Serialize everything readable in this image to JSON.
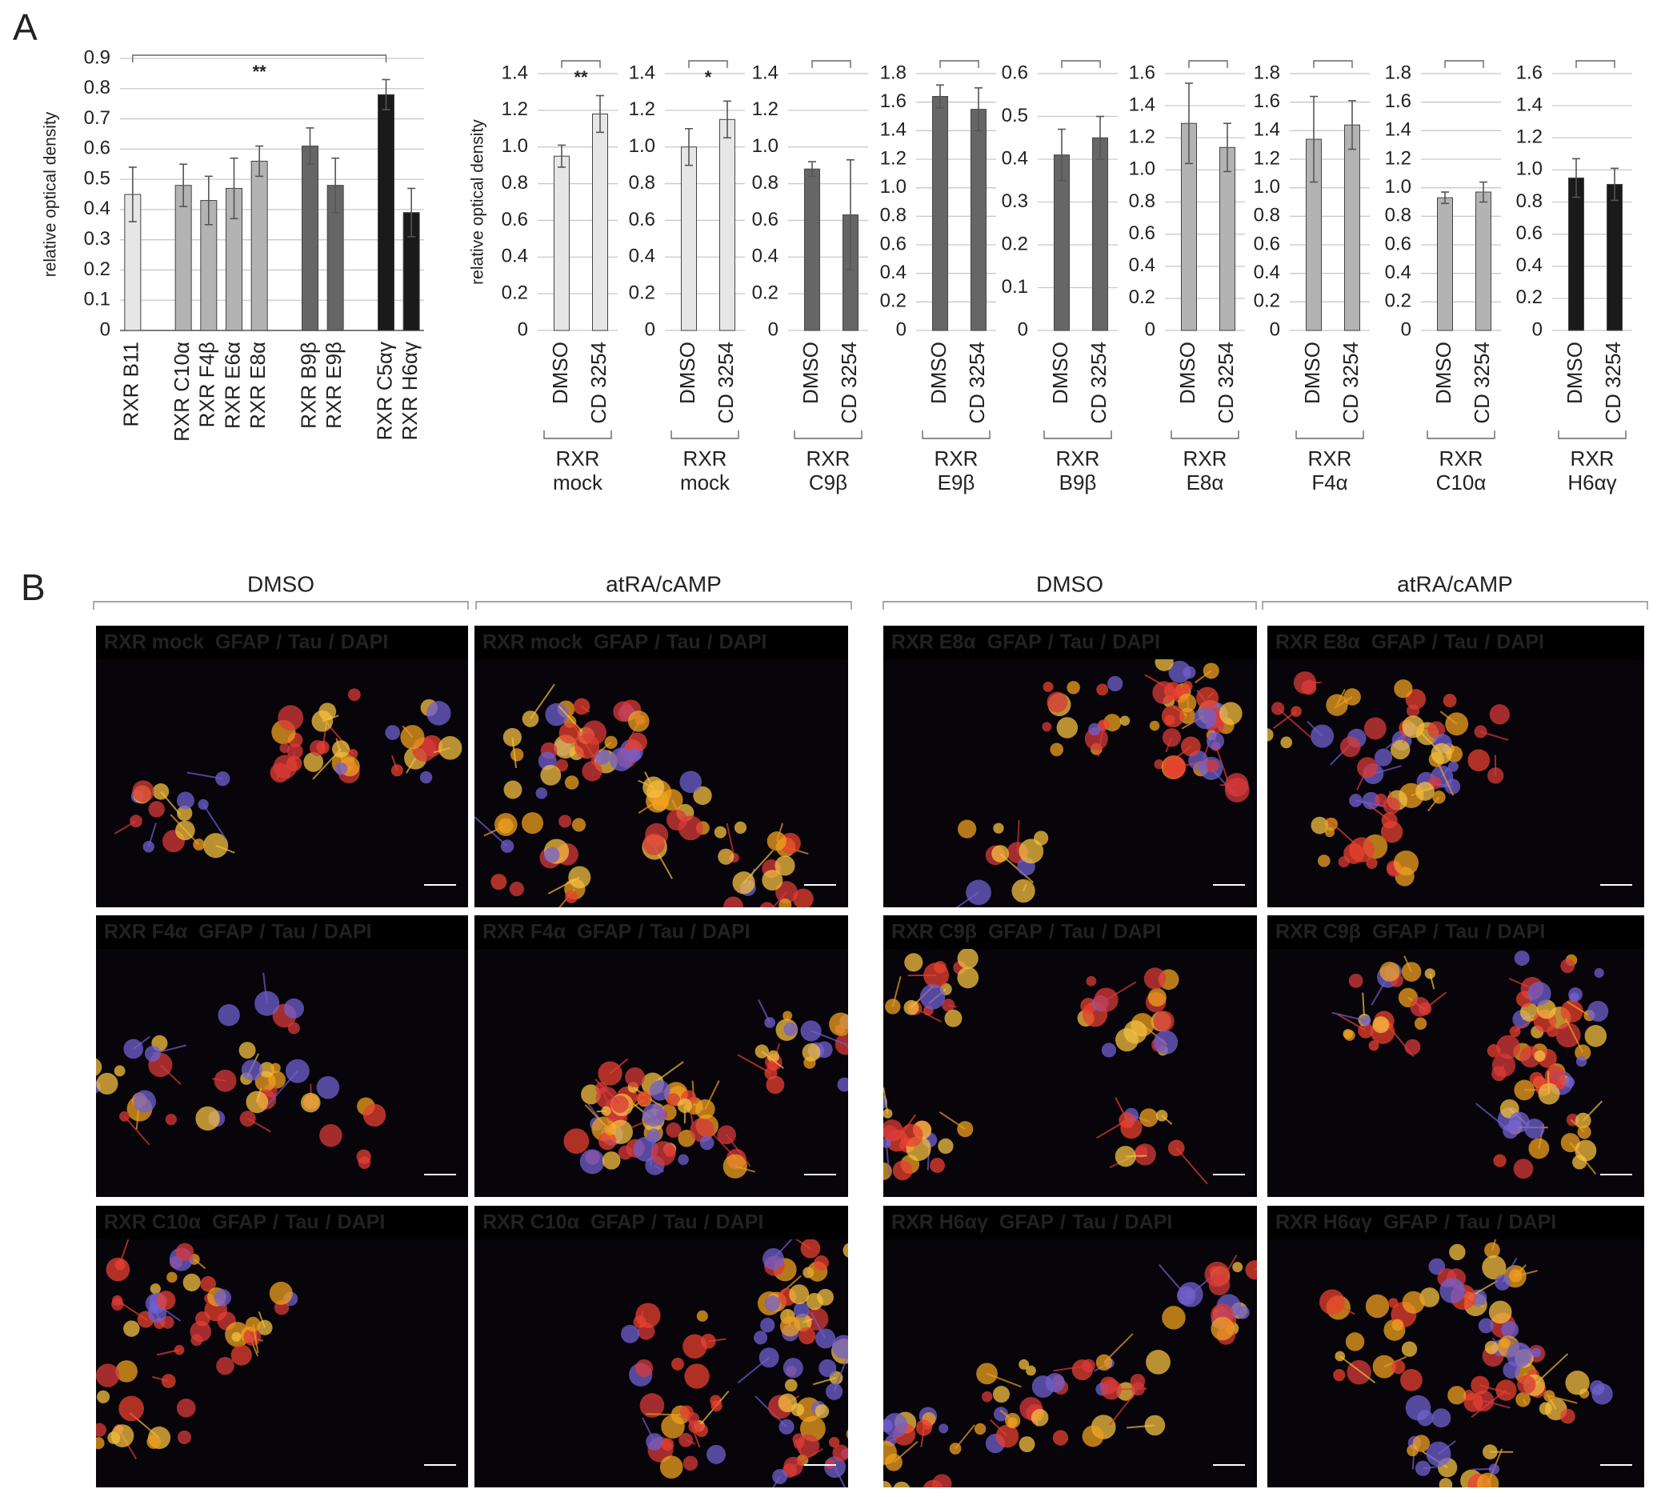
{
  "panel_labels": [
    "A",
    "B"
  ],
  "chart_data": [
    {
      "type": "bar",
      "ylabel": "relative optical density",
      "categories": [
        "RXR B11",
        null,
        "RXR C10α",
        "RXR F4β",
        "RXR E6α",
        "RXR E8α",
        null,
        "RXR B9β",
        "RXR E9β",
        null,
        "RXR C5αγ",
        "RXR H6αγ"
      ],
      "values": [
        0.45,
        null,
        0.48,
        0.43,
        0.47,
        0.56,
        null,
        0.61,
        0.48,
        null,
        0.78,
        0.39
      ],
      "errors": [
        0.09,
        null,
        0.07,
        0.08,
        0.1,
        0.05,
        null,
        0.06,
        0.09,
        null,
        0.05,
        0.08
      ],
      "colors": [
        "#e6e6e6",
        null,
        "#b3b3b3",
        "#b3b3b3",
        "#b3b3b3",
        "#b3b3b3",
        null,
        "#666666",
        "#666666",
        null,
        "#1a1a1a",
        "#1a1a1a"
      ],
      "ylim": [
        0,
        0.9
      ],
      "yticks": [
        0,
        0.1,
        0.2,
        0.3,
        0.4,
        0.5,
        0.6,
        0.7,
        0.8,
        0.9
      ],
      "grid": true,
      "annotation": "**"
    },
    {
      "type": "bar",
      "ylabel": "relative optical density",
      "categories": [
        "DMSO",
        "CD 3254"
      ],
      "group_label": [
        "RXR",
        "mock"
      ],
      "values": [
        0.95,
        1.18
      ],
      "errors": [
        0.06,
        0.1
      ],
      "color": "#e6e6e6",
      "ylim": [
        0,
        1.4
      ],
      "yticks": [
        0,
        0.2,
        0.4,
        0.6,
        0.8,
        {
          "value": 1,
          "label": "1.0"
        },
        1.2,
        1.4
      ],
      "grid": true,
      "annotation": "**"
    },
    {
      "type": "bar",
      "categories": [
        "DMSO",
        "CD 3254"
      ],
      "group_label": [
        "RXR",
        "mock"
      ],
      "values": [
        1.0,
        1.15
      ],
      "errors": [
        0.1,
        0.1
      ],
      "color": "#e6e6e6",
      "ylim": [
        0,
        1.4
      ],
      "yticks": [
        0,
        0.2,
        0.4,
        0.6,
        0.8,
        {
          "value": 1,
          "label": "1.0"
        },
        1.2,
        1.4
      ],
      "grid": true,
      "annotation": "*"
    },
    {
      "type": "bar",
      "categories": [
        "DMSO",
        "CD 3254"
      ],
      "group_label": [
        "RXR",
        "C9β"
      ],
      "values": [
        0.88,
        0.63
      ],
      "errors": [
        0.04,
        0.3
      ],
      "color": "#666666",
      "ylim": [
        0,
        1.4
      ],
      "yticks": [
        0,
        0.2,
        0.4,
        0.6,
        0.8,
        {
          "value": 1,
          "label": "1.0"
        },
        1.2,
        1.4
      ],
      "grid": true
    },
    {
      "type": "bar",
      "categories": [
        "DMSO",
        "CD 3254"
      ],
      "group_label": [
        "RXR",
        "E9β"
      ],
      "values": [
        1.64,
        1.55
      ],
      "errors": [
        0.08,
        0.15
      ],
      "color": "#666666",
      "ylim": [
        0,
        1.8
      ],
      "yticks": [
        0,
        0.2,
        0.4,
        0.6,
        0.8,
        {
          "value": 1,
          "label": "1.0"
        },
        1.2,
        1.4,
        1.6,
        1.8
      ],
      "grid": true
    },
    {
      "type": "bar",
      "categories": [
        "DMSO",
        "CD 3254"
      ],
      "group_label": [
        "RXR",
        "B9β"
      ],
      "values": [
        0.41,
        0.45
      ],
      "errors": [
        0.06,
        0.05
      ],
      "color": "#666666",
      "ylim": [
        0,
        0.6
      ],
      "yticks": [
        0,
        0.1,
        0.2,
        0.3,
        0.4,
        0.5,
        0.6
      ],
      "grid": true
    },
    {
      "type": "bar",
      "categories": [
        "DMSO",
        "CD 3254"
      ],
      "group_label": [
        "RXR",
        "E8α"
      ],
      "values": [
        1.29,
        1.14
      ],
      "errors": [
        0.25,
        0.15
      ],
      "color": "#b3b3b3",
      "ylim": [
        0,
        1.6
      ],
      "yticks": [
        0,
        0.2,
        0.4,
        0.6,
        0.8,
        {
          "value": 1,
          "label": "1.0"
        },
        1.2,
        1.4,
        1.6
      ],
      "grid": true
    },
    {
      "type": "bar",
      "categories": [
        "DMSO",
        "CD 3254"
      ],
      "group_label": [
        "RXR",
        "F4α"
      ],
      "values": [
        1.34,
        1.44
      ],
      "errors": [
        0.3,
        0.17
      ],
      "color": "#b3b3b3",
      "ylim": [
        0,
        1.8
      ],
      "yticks": [
        0,
        0.2,
        0.4,
        0.6,
        0.8,
        {
          "value": 1,
          "label": "1.0"
        },
        1.2,
        1.4,
        1.6,
        1.8
      ],
      "grid": true
    },
    {
      "type": "bar",
      "categories": [
        "DMSO",
        "CD 3254"
      ],
      "group_label": [
        "RXR",
        "C10α"
      ],
      "values": [
        0.93,
        0.97
      ],
      "errors": [
        0.04,
        0.07
      ],
      "color": "#b3b3b3",
      "ylim": [
        0,
        1.8
      ],
      "yticks": [
        0,
        0.2,
        0.4,
        0.6,
        0.8,
        {
          "value": 1,
          "label": "1.0"
        },
        1.2,
        1.4,
        1.6,
        1.8
      ],
      "grid": true
    },
    {
      "type": "bar",
      "categories": [
        "DMSO",
        "CD 3254"
      ],
      "group_label": [
        "RXR",
        "H6αγ"
      ],
      "values": [
        0.95,
        0.91
      ],
      "errors": [
        0.12,
        0.1
      ],
      "color": "#1a1a1a",
      "ylim": [
        0,
        1.6
      ],
      "yticks": [
        0,
        0.2,
        0.4,
        0.6,
        0.8,
        {
          "value": 1,
          "label": "1.0"
        },
        1.2,
        1.4,
        1.6
      ],
      "grid": true
    }
  ],
  "micrographs": {
    "columns": [
      "DMSO",
      "atRA/cAMP",
      "DMSO",
      "atRA/cAMP"
    ],
    "stains": [
      {
        "name": "GFAP",
        "color": "#22b24c"
      },
      {
        "name": "Tau",
        "color": "#e8141c"
      },
      {
        "name": "DAPI",
        "color": "#4d7fe0"
      }
    ],
    "separator": "/",
    "rows": [
      [
        "RXR mock",
        "RXR mock",
        "RXR E8α",
        "RXR E8α"
      ],
      [
        "RXR F4α",
        "RXR F4α",
        "RXR C9β",
        "RXR C9β"
      ],
      [
        "RXR C10α",
        "RXR C10α",
        "RXR H6αγ",
        "RXR H6αγ"
      ]
    ]
  }
}
